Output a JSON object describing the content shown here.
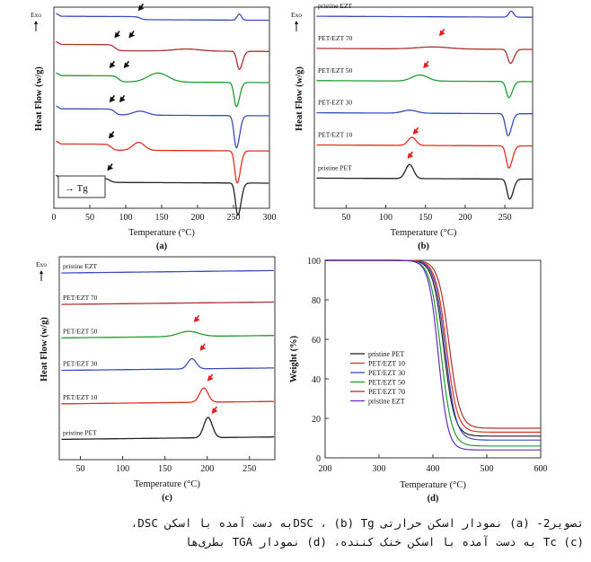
{
  "chart_data": [
    {
      "id": "a",
      "type": "line",
      "panel_label": "(a)",
      "exo_label": "Exo",
      "xlabel": "Temperature (°C)",
      "ylabel": "Heat Flow (w/g)",
      "xlim": [
        0,
        300
      ],
      "xticks": [
        "0",
        "50",
        "100",
        "150",
        "200",
        "250",
        "300"
      ],
      "legend": "→ Tg",
      "series": [
        {
          "color": "#3b4cc0",
          "base": 0.955,
          "tg": 120,
          "tg_depth": 0.015,
          "cryst": null,
          "melt": {
            "pos": 258,
            "type": "bump",
            "amp": 0.03
          }
        },
        {
          "color": "#b03030",
          "base": 0.815,
          "tg": 85,
          "tg_depth": 0.03,
          "cryst": {
            "pos": 185,
            "amp": 0.01,
            "width": 18
          },
          "melt": {
            "pos": 258,
            "type": "dip",
            "amp": 0.09
          }
        },
        {
          "color": "#1f9e2e",
          "base": 0.66,
          "tg": 90,
          "tg_depth": 0.03,
          "cryst": {
            "pos": 145,
            "amp": 0.045,
            "width": 14
          },
          "melt": {
            "pos": 254,
            "type": "dip",
            "amp": 0.12
          }
        },
        {
          "color": "#3b4cc0",
          "base": 0.495,
          "tg": 85,
          "tg_depth": 0.03,
          "cryst": {
            "pos": 120,
            "amp": 0.02,
            "width": 10
          },
          "melt": {
            "pos": 254,
            "type": "dip",
            "amp": 0.16
          }
        },
        {
          "color": "#e03020",
          "base": 0.32,
          "tg": 80,
          "tg_depth": 0.03,
          "cryst": {
            "pos": 118,
            "amp": 0.04,
            "width": 8
          },
          "melt": {
            "pos": 255,
            "type": "dip",
            "amp": 0.16
          }
        },
        {
          "color": "#222222",
          "base": 0.15,
          "tg": 78,
          "tg_depth": 0.02,
          "cryst": null,
          "melt": {
            "pos": 256,
            "type": "dip",
            "amp": 0.16
          }
        }
      ],
      "arrows": [
        {
          "x": 118,
          "y": 0.985
        },
        {
          "x": 85,
          "y": 0.85
        },
        {
          "x": 105,
          "y": 0.85
        },
        {
          "x": 78,
          "y": 0.7
        },
        {
          "x": 98,
          "y": 0.7
        },
        {
          "x": 78,
          "y": 0.53
        },
        {
          "x": 92,
          "y": 0.53
        },
        {
          "x": 77,
          "y": 0.35
        },
        {
          "x": 75,
          "y": 0.19
        }
      ],
      "arrow_color": "#111111"
    },
    {
      "id": "b",
      "type": "line",
      "panel_label": "(b)",
      "exo_label": "Exo",
      "xlabel": "Temperature (°C)",
      "ylabel": "Heat Flow (w/g)",
      "xlim": [
        10,
        285
      ],
      "xticks": [
        "50",
        "100",
        "150",
        "200",
        "250"
      ],
      "series": [
        {
          "label": "pristine EZT",
          "color": "#3b4cc0",
          "base": 0.955,
          "peak": null,
          "melt": {
            "pos": 258,
            "type": "bump",
            "amp": 0.03
          }
        },
        {
          "label": "PET/EZT 70",
          "color": "#b03030",
          "base": 0.795,
          "peak": {
            "pos": 160,
            "amp": 0.01,
            "width": 20
          },
          "melt": {
            "pos": 257,
            "type": "dip",
            "amp": 0.07
          }
        },
        {
          "label": "PET/EZT 50",
          "color": "#1f9e2e",
          "base": 0.635,
          "peak": {
            "pos": 143,
            "amp": 0.03,
            "width": 10
          },
          "melt": {
            "pos": 255,
            "type": "dip",
            "amp": 0.08
          }
        },
        {
          "label": "PET-EZT 30",
          "color": "#3b4cc0",
          "base": 0.475,
          "peak": {
            "pos": 130,
            "amp": 0.015,
            "width": 9
          },
          "melt": {
            "pos": 254,
            "type": "dip",
            "amp": 0.11
          }
        },
        {
          "label": "PET/EZT 10",
          "color": "#e03020",
          "base": 0.315,
          "peak": {
            "pos": 133,
            "amp": 0.04,
            "width": 5
          },
          "melt": {
            "pos": 255,
            "type": "dip",
            "amp": 0.11
          }
        },
        {
          "label": "pristine PET",
          "color": "#222222",
          "base": 0.15,
          "peak": {
            "pos": 130,
            "amp": 0.07,
            "width": 5
          },
          "melt": {
            "pos": 256,
            "type": "dip",
            "amp": 0.1
          }
        }
      ],
      "arrows": [
        {
          "x": 168,
          "y": 0.86
        },
        {
          "x": 148,
          "y": 0.7
        },
        {
          "x": 135,
          "y": 0.37
        },
        {
          "x": 128,
          "y": 0.25
        }
      ],
      "arrow_color": "#e02020"
    },
    {
      "id": "c",
      "type": "line",
      "panel_label": "(c)",
      "exo_label": "Exo",
      "xlabel": "Temperature (°C)",
      "ylabel": "Heat Flow (w/g)",
      "xlim": [
        25,
        280
      ],
      "xticks": [
        "50",
        "100",
        "150",
        "200",
        "250"
      ],
      "series": [
        {
          "label": "pristine EZT",
          "color": "#3b4cc0",
          "base": 0.92,
          "peak": null
        },
        {
          "label": "PET/EZT 70",
          "color": "#b03030",
          "base": 0.765,
          "peak": null
        },
        {
          "label": "PET/EZT 50",
          "color": "#1f9e2e",
          "base": 0.6,
          "peak": {
            "pos": 178,
            "amp": 0.025,
            "width": 12
          }
        },
        {
          "label": "PET/EZT 30",
          "color": "#3b4cc0",
          "base": 0.44,
          "peak": {
            "pos": 182,
            "amp": 0.05,
            "width": 5
          }
        },
        {
          "label": "PET/EZT 10",
          "color": "#e03020",
          "base": 0.275,
          "peak": {
            "pos": 196,
            "amp": 0.07,
            "width": 5
          }
        },
        {
          "label": "pristine PET",
          "color": "#222222",
          "base": 0.1,
          "peak": {
            "pos": 201,
            "amp": 0.1,
            "width": 5
          }
        }
      ],
      "arrows": [
        {
          "x": 185,
          "y": 0.68
        },
        {
          "x": 192,
          "y": 0.54
        },
        {
          "x": 201,
          "y": 0.39
        },
        {
          "x": 206,
          "y": 0.23
        }
      ],
      "arrow_color": "#e02020"
    },
    {
      "id": "d",
      "type": "line",
      "panel_label": "(d)",
      "xlabel": "Temperature (°C)",
      "ylabel": "Weight (%)",
      "xlim": [
        200,
        600
      ],
      "ylim": [
        0,
        100
      ],
      "xticks": [
        200,
        300,
        400,
        500,
        600
      ],
      "yticks": [
        0,
        20,
        40,
        60,
        80,
        100
      ],
      "series": [
        {
          "name": "pristine PET",
          "color": "#222222",
          "onset": 420,
          "residual": 11,
          "k": 10
        },
        {
          "name": "PET/EZT 10",
          "color": "#e03020",
          "onset": 425,
          "residual": 13,
          "k": 10
        },
        {
          "name": "PET/EZT 30",
          "color": "#3b4cc0",
          "onset": 423,
          "residual": 9,
          "k": 10
        },
        {
          "name": "PET/EZT 50",
          "color": "#1f9e2e",
          "onset": 415,
          "residual": 6,
          "k": 10
        },
        {
          "name": "PET/EZT 70",
          "color": "#b03030",
          "onset": 430,
          "residual": 15,
          "k": 10
        },
        {
          "name": "pristine EZT",
          "color": "#6a2bc0",
          "onset": 410,
          "residual": 4,
          "k": 9
        }
      ]
    }
  ],
  "caption": {
    "line1": "تصویر2- (a) نمودار اسکن حرارتی DSC ، (b) Tgبه دست آمده با اسکن DSC،",
    "line2": "(c) Tc به دست آمده با اسکن خنک کننده، (d) نمودار TGA بطری‌ها"
  }
}
